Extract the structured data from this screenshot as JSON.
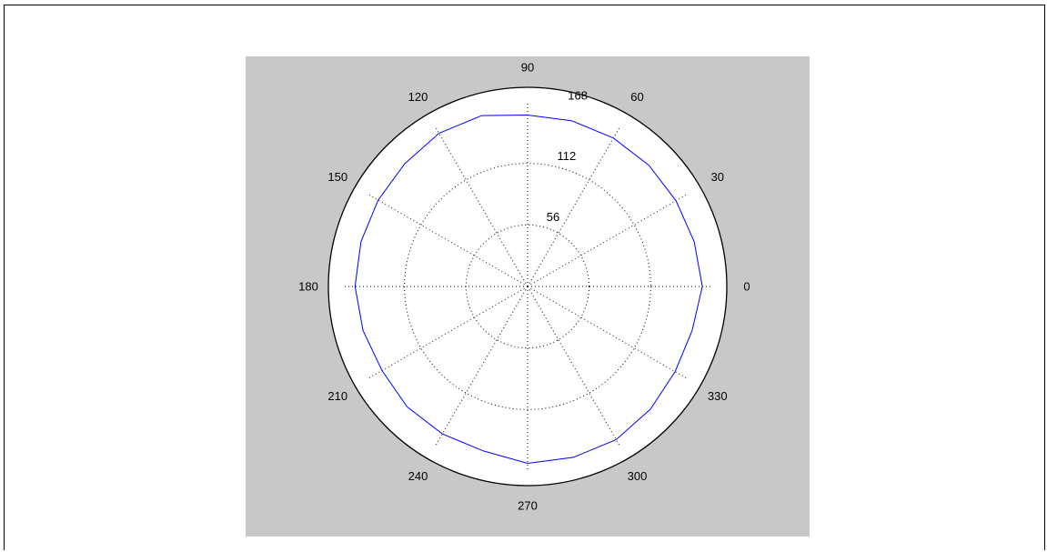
{
  "chart_data": {
    "type": "line",
    "subtype": "polar",
    "rmax": 168,
    "radial_ticks": [
      {
        "value": 56,
        "label": "56"
      },
      {
        "value": 112,
        "label": "112"
      },
      {
        "value": 168,
        "label": "168"
      }
    ],
    "angle_ticks": [
      {
        "deg": 0,
        "label": "0"
      },
      {
        "deg": 30,
        "label": "30"
      },
      {
        "deg": 60,
        "label": "60"
      },
      {
        "deg": 90,
        "label": "90"
      },
      {
        "deg": 120,
        "label": "120"
      },
      {
        "deg": 150,
        "label": "150"
      },
      {
        "deg": 180,
        "label": "180"
      },
      {
        "deg": 210,
        "label": "210"
      },
      {
        "deg": 240,
        "label": "240"
      },
      {
        "deg": 270,
        "label": "270"
      },
      {
        "deg": 300,
        "label": "300"
      },
      {
        "deg": 330,
        "label": "330"
      }
    ],
    "grid": true,
    "series": [
      {
        "color": "#0000ff",
        "theta": [
          0,
          15,
          30,
          45,
          60,
          75,
          90,
          105,
          120,
          135,
          150,
          165,
          180,
          195,
          210,
          225,
          240,
          255,
          270,
          285,
          300,
          315,
          330,
          345,
          360
        ],
        "r": [
          159,
          157,
          156,
          156,
          156,
          156,
          156,
          161,
          161,
          158,
          157,
          157,
          157,
          155,
          153,
          155,
          155,
          155,
          161,
          161,
          161,
          158,
          155,
          155,
          159
        ]
      }
    ]
  }
}
